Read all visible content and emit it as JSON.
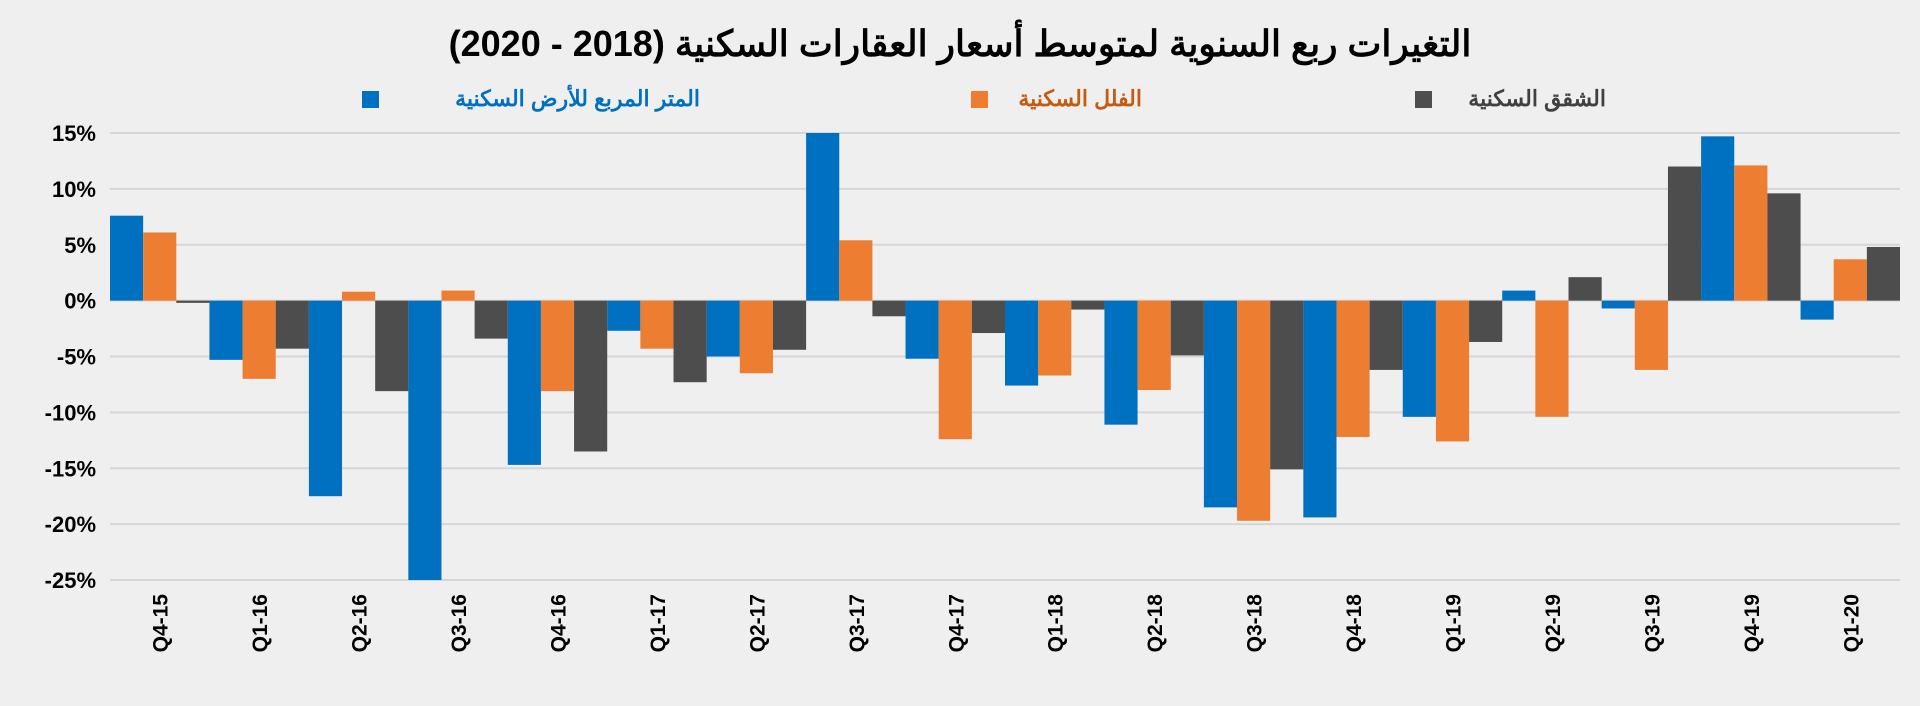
{
  "chart_data": {
    "type": "bar",
    "title": "التغيرات ربع السنوية لمتوسط أسعار العقارات السكنية (2018 - 2020)",
    "xlabel": "",
    "ylabel": "",
    "ylim": [
      -25,
      15
    ],
    "yticks": [
      "15%",
      "10%",
      "5%",
      "0%",
      "-5%",
      "-10%",
      "-15%",
      "-20%",
      "-25%"
    ],
    "ytick_values": [
      15,
      10,
      5,
      0,
      -5,
      -10,
      -15,
      -20,
      -25
    ],
    "grid": true,
    "legend_position": "top",
    "categories": [
      "Q4-15",
      "Q1-16",
      "Q2-16",
      "Q3-16",
      "Q4-16",
      "Q1-17",
      "Q2-17",
      "Q3-17",
      "Q4-17",
      "Q1-18",
      "Q2-18",
      "Q3-18",
      "Q4-18",
      "Q1-19",
      "Q2-19",
      "Q3-19",
      "Q4-19",
      "Q1-20"
    ],
    "series": [
      {
        "name": "المتر المربع للأرض السكنية",
        "color": "#0070c0",
        "values": [
          7.6,
          -5.3,
          -17.5,
          -25,
          -14.7,
          -2.7,
          -5.0,
          15,
          -5.2,
          -7.6,
          -11.1,
          -18.5,
          -19.4,
          -10.4,
          0.9,
          -0.7,
          14.7,
          -1.7
        ]
      },
      {
        "name": "الفلل السكنية",
        "color": "#ed7d31",
        "values": [
          6.1,
          -7.0,
          0.8,
          0.9,
          -8.1,
          -4.3,
          -6.5,
          5.4,
          -12.4,
          -6.7,
          -8.0,
          -19.7,
          -12.2,
          -12.6,
          -10.4,
          -6.2,
          12.1,
          3.7
        ]
      },
      {
        "name": "الشقق السكنية",
        "color": "#4d4d4d",
        "values": [
          -0.2,
          -4.3,
          -8.1,
          -3.4,
          -13.5,
          -7.3,
          -4.4,
          -1.4,
          -2.9,
          -0.8,
          -4.9,
          -15.1,
          -6.2,
          -3.7,
          2.1,
          12.0,
          9.6,
          4.8
        ]
      }
    ]
  }
}
